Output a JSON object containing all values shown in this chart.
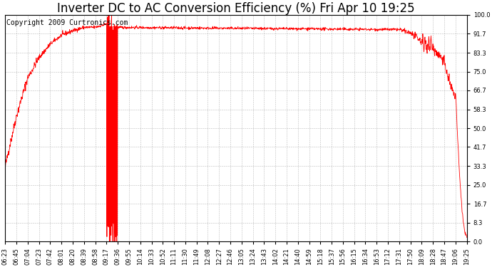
{
  "title": "Inverter DC to AC Conversion Efficiency (%) Fri Apr 10 19:25",
  "copyright": "Copyright 2009 Curtronics.com",
  "line_color": "#ff0000",
  "bg_color": "#ffffff",
  "grid_color": "#aaaaaa",
  "ylim": [
    0.0,
    100.0
  ],
  "yticks": [
    0.0,
    8.3,
    16.7,
    25.0,
    33.3,
    41.7,
    50.0,
    58.3,
    66.7,
    75.0,
    83.3,
    91.7,
    100.0
  ],
  "xtick_labels": [
    "06:23",
    "06:45",
    "07:04",
    "07:23",
    "07:42",
    "08:01",
    "08:20",
    "08:39",
    "08:58",
    "09:17",
    "09:36",
    "09:55",
    "10:14",
    "10:33",
    "10:52",
    "11:11",
    "11:30",
    "11:49",
    "12:08",
    "12:27",
    "12:46",
    "13:05",
    "13:24",
    "13:43",
    "14:02",
    "14:21",
    "14:40",
    "14:59",
    "15:18",
    "15:37",
    "15:56",
    "16:15",
    "16:34",
    "16:53",
    "17:12",
    "17:31",
    "17:50",
    "18:09",
    "18:28",
    "18:47",
    "19:06",
    "19:25"
  ],
  "title_fontsize": 12,
  "copyright_fontsize": 7,
  "tick_fontsize": 6,
  "n_points": 1680,
  "n_ticks": 42
}
